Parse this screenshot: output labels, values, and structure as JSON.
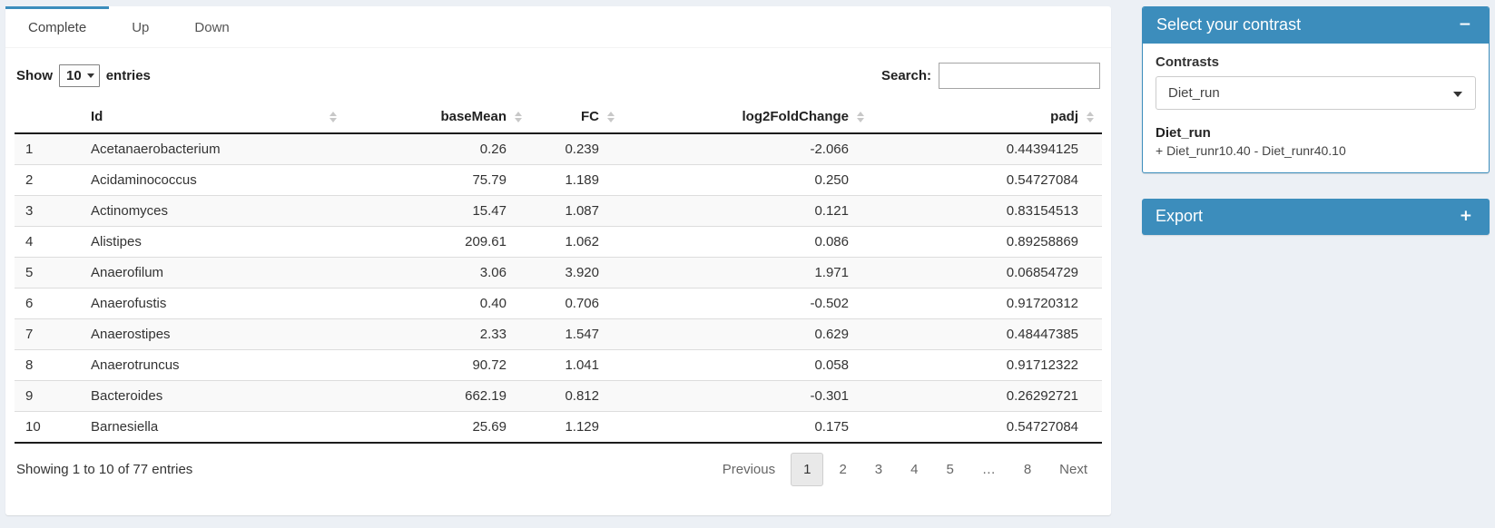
{
  "colors": {
    "primary": "#3c8dbc",
    "page_bg": "#ecf0f5",
    "stripe": "#f9f9f9"
  },
  "tabs": {
    "items": [
      {
        "label": "Complete",
        "active": true
      },
      {
        "label": "Up",
        "active": false
      },
      {
        "label": "Down",
        "active": false
      }
    ]
  },
  "controls": {
    "show_label": "Show",
    "page_length": "10",
    "entries_label": "entries",
    "search_label": "Search:",
    "search_value": ""
  },
  "table": {
    "columns": [
      {
        "label": "",
        "sortable": false,
        "align": "left"
      },
      {
        "label": "Id",
        "sortable": true,
        "align": "left"
      },
      {
        "label": "baseMean",
        "sortable": true,
        "align": "right"
      },
      {
        "label": "FC",
        "sortable": true,
        "align": "right"
      },
      {
        "label": "log2FoldChange",
        "sortable": true,
        "align": "right"
      },
      {
        "label": "padj",
        "sortable": true,
        "align": "right"
      }
    ],
    "rows": [
      [
        "1",
        "Acetanaerobacterium",
        "0.26",
        "0.239",
        "-2.066",
        "0.44394125"
      ],
      [
        "2",
        "Acidaminococcus",
        "75.79",
        "1.189",
        "0.250",
        "0.54727084"
      ],
      [
        "3",
        "Actinomyces",
        "15.47",
        "1.087",
        "0.121",
        "0.83154513"
      ],
      [
        "4",
        "Alistipes",
        "209.61",
        "1.062",
        "0.086",
        "0.89258869"
      ],
      [
        "5",
        "Anaerofilum",
        "3.06",
        "3.920",
        "1.971",
        "0.06854729"
      ],
      [
        "6",
        "Anaerofustis",
        "0.40",
        "0.706",
        "-0.502",
        "0.91720312"
      ],
      [
        "7",
        "Anaerostipes",
        "2.33",
        "1.547",
        "0.629",
        "0.48447385"
      ],
      [
        "8",
        "Anaerotruncus",
        "90.72",
        "1.041",
        "0.058",
        "0.91712322"
      ],
      [
        "9",
        "Bacteroides",
        "662.19",
        "0.812",
        "-0.301",
        "0.26292721"
      ],
      [
        "10",
        "Barnesiella",
        "25.69",
        "1.129",
        "0.175",
        "0.54727084"
      ]
    ]
  },
  "footer": {
    "info": "Showing 1 to 10 of 77 entries",
    "pagination": [
      {
        "label": "Previous",
        "type": "prev",
        "active": false
      },
      {
        "label": "1",
        "type": "page",
        "active": true
      },
      {
        "label": "2",
        "type": "page",
        "active": false
      },
      {
        "label": "3",
        "type": "page",
        "active": false
      },
      {
        "label": "4",
        "type": "page",
        "active": false
      },
      {
        "label": "5",
        "type": "page",
        "active": false
      },
      {
        "label": "…",
        "type": "ellipsis",
        "active": false
      },
      {
        "label": "8",
        "type": "page",
        "active": false
      },
      {
        "label": "Next",
        "type": "next",
        "active": false
      }
    ]
  },
  "sidebar": {
    "contrast_panel": {
      "title": "Select your contrast",
      "collapse_icon": "−",
      "contrasts_label": "Contrasts",
      "selected_contrast": "Diet_run",
      "detail_title": "Diet_run",
      "detail_formula": "+ Diet_runr10.40 - Diet_runr40.10"
    },
    "export_panel": {
      "title": "Export",
      "expand_icon": "+"
    }
  }
}
